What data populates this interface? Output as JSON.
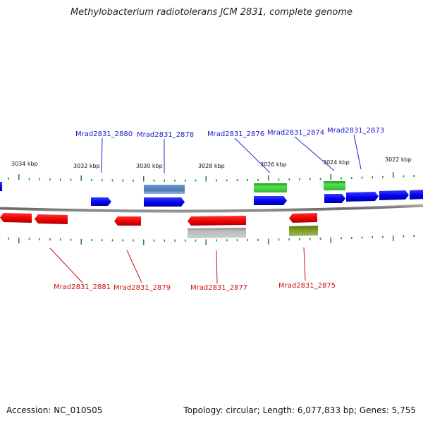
{
  "title": "Methylobacterium radiotolerans JCM 2831, complete genome",
  "footer": {
    "accession": "Accession: NC_010505",
    "summary": "Topology: circular; Length: 6,077,833 bp; Genes: 5,755"
  },
  "colors": {
    "forward_label": "#1a1acc",
    "reverse_label": "#cc1111",
    "tick": "#2a8a2a",
    "backbone": "#777777"
  },
  "scale_labels": [
    "3034 kbp",
    "3032 kbp",
    "3030 kbp",
    "3028 kbp",
    "3026 kbp",
    "3024 kbp",
    "3022 kbp"
  ],
  "forward_genes": [
    {
      "label": "Mrad2831_2880"
    },
    {
      "label": "Mrad2831_2878"
    },
    {
      "label": "Mrad2831_2876"
    },
    {
      "label": "Mrad2831_2874"
    },
    {
      "label": "Mrad2831_2873"
    }
  ],
  "reverse_genes": [
    {
      "label": "Mrad2831_2881"
    },
    {
      "label": "Mrad2831_2879"
    },
    {
      "label": "Mrad2831_2877"
    },
    {
      "label": "Mrad2831_2875"
    }
  ]
}
